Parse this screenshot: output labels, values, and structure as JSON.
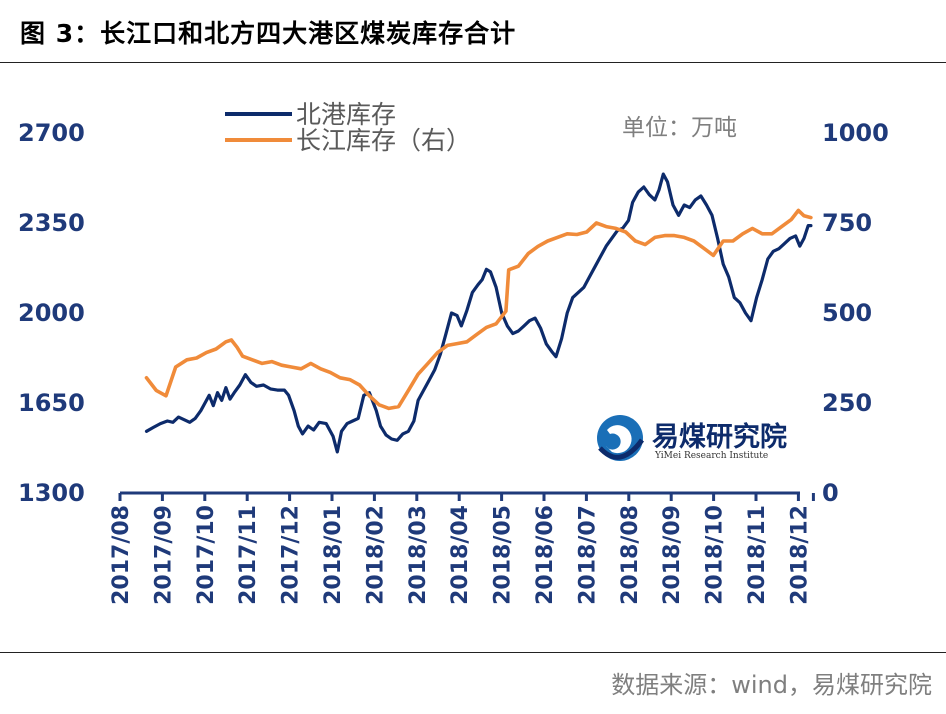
{
  "header": {
    "title": "图 3：长江口和北方四大港区煤炭库存合计"
  },
  "footer": {
    "source": "数据来源：wind，易煤研究院"
  },
  "logo": {
    "name": "易煤研究院",
    "subtitle": "YiMei Research Institute"
  },
  "colors": {
    "north": "#0d2b6b",
    "yangtze": "#f08b3a",
    "axis": "#1f3a7a",
    "text": "#1f3a7a",
    "unit": "#7f7f7f"
  },
  "chart_data": {
    "type": "line",
    "unit_label": "单位：万吨",
    "left_axis": {
      "ticks": [
        1300,
        1650,
        2000,
        2350,
        2700
      ],
      "ylim": [
        1300,
        2700
      ]
    },
    "right_axis": {
      "ticks": [
        0,
        250,
        500,
        750,
        1000
      ],
      "ylim": [
        0,
        1000
      ]
    },
    "x_ticks": [
      "2017/08",
      "2017/09",
      "2017/10",
      "2017/11",
      "2017/12",
      "2018/01",
      "2018/02",
      "2018/03",
      "2018/04",
      "2018/05",
      "2018/06",
      "2018/07",
      "2018/08",
      "2018/09",
      "2018/10",
      "2018/11",
      "2018/12"
    ],
    "legend": {
      "position": "top-left",
      "entries": [
        "北港库存",
        "长江库存（右）"
      ]
    },
    "series": [
      {
        "name": "北港库存",
        "axis": "left",
        "points": [
          [
            "2017-08-20",
            1540
          ],
          [
            "2017-08-25",
            1555
          ],
          [
            "2017-08-30",
            1570
          ],
          [
            "2017-09-04",
            1580
          ],
          [
            "2017-09-08",
            1575
          ],
          [
            "2017-09-12",
            1595
          ],
          [
            "2017-09-16",
            1585
          ],
          [
            "2017-09-20",
            1575
          ],
          [
            "2017-09-24",
            1590
          ],
          [
            "2017-09-28",
            1620
          ],
          [
            "2017-10-01",
            1650
          ],
          [
            "2017-10-04",
            1680
          ],
          [
            "2017-10-07",
            1640
          ],
          [
            "2017-10-10",
            1690
          ],
          [
            "2017-10-13",
            1660
          ],
          [
            "2017-10-16",
            1710
          ],
          [
            "2017-10-19",
            1665
          ],
          [
            "2017-10-22",
            1690
          ],
          [
            "2017-10-26",
            1720
          ],
          [
            "2017-10-30",
            1760
          ],
          [
            "2017-11-03",
            1730
          ],
          [
            "2017-11-07",
            1715
          ],
          [
            "2017-11-12",
            1720
          ],
          [
            "2017-11-17",
            1705
          ],
          [
            "2017-11-22",
            1700
          ],
          [
            "2017-11-27",
            1700
          ],
          [
            "2017-11-30",
            1680
          ],
          [
            "2017-12-04",
            1620
          ],
          [
            "2017-12-07",
            1560
          ],
          [
            "2017-12-10",
            1530
          ],
          [
            "2017-12-14",
            1560
          ],
          [
            "2017-12-18",
            1545
          ],
          [
            "2017-12-22",
            1575
          ],
          [
            "2017-12-27",
            1570
          ],
          [
            "2018-01-01",
            1520
          ],
          [
            "2018-01-04",
            1460
          ],
          [
            "2018-01-07",
            1540
          ],
          [
            "2018-01-11",
            1570
          ],
          [
            "2018-01-15",
            1580
          ],
          [
            "2018-01-19",
            1590
          ],
          [
            "2018-01-23",
            1680
          ],
          [
            "2018-01-27",
            1690
          ],
          [
            "2018-02-01",
            1620
          ],
          [
            "2018-02-04",
            1560
          ],
          [
            "2018-02-08",
            1525
          ],
          [
            "2018-02-12",
            1510
          ],
          [
            "2018-02-16",
            1505
          ],
          [
            "2018-02-20",
            1530
          ],
          [
            "2018-02-24",
            1540
          ],
          [
            "2018-02-28",
            1580
          ],
          [
            "2018-03-03",
            1660
          ],
          [
            "2018-03-07",
            1700
          ],
          [
            "2018-03-11",
            1740
          ],
          [
            "2018-03-15",
            1780
          ],
          [
            "2018-03-19",
            1840
          ],
          [
            "2018-03-23",
            1920
          ],
          [
            "2018-03-27",
            2000
          ],
          [
            "2018-03-31",
            1990
          ],
          [
            "2018-04-03",
            1950
          ],
          [
            "2018-04-07",
            2010
          ],
          [
            "2018-04-11",
            2080
          ],
          [
            "2018-04-15",
            2110
          ],
          [
            "2018-04-18",
            2130
          ],
          [
            "2018-04-21",
            2170
          ],
          [
            "2018-04-24",
            2160
          ],
          [
            "2018-04-28",
            2100
          ],
          [
            "2018-05-02",
            2000
          ],
          [
            "2018-05-06",
            1950
          ],
          [
            "2018-05-10",
            1920
          ],
          [
            "2018-05-14",
            1930
          ],
          [
            "2018-05-18",
            1950
          ],
          [
            "2018-05-22",
            1970
          ],
          [
            "2018-05-26",
            1980
          ],
          [
            "2018-05-30",
            1940
          ],
          [
            "2018-06-03",
            1880
          ],
          [
            "2018-06-07",
            1850
          ],
          [
            "2018-06-10",
            1830
          ],
          [
            "2018-06-14",
            1900
          ],
          [
            "2018-06-18",
            2000
          ],
          [
            "2018-06-22",
            2060
          ],
          [
            "2018-06-26",
            2080
          ],
          [
            "2018-06-30",
            2100
          ],
          [
            "2018-07-04",
            2140
          ],
          [
            "2018-07-08",
            2180
          ],
          [
            "2018-07-12",
            2220
          ],
          [
            "2018-07-16",
            2260
          ],
          [
            "2018-07-20",
            2290
          ],
          [
            "2018-07-24",
            2320
          ],
          [
            "2018-07-28",
            2330
          ],
          [
            "2018-08-01",
            2360
          ],
          [
            "2018-08-04",
            2430
          ],
          [
            "2018-08-08",
            2470
          ],
          [
            "2018-08-12",
            2490
          ],
          [
            "2018-08-16",
            2460
          ],
          [
            "2018-08-20",
            2440
          ],
          [
            "2018-08-23",
            2480
          ],
          [
            "2018-08-26",
            2540
          ],
          [
            "2018-08-29",
            2510
          ],
          [
            "2018-09-02",
            2420
          ],
          [
            "2018-09-06",
            2380
          ],
          [
            "2018-09-10",
            2420
          ],
          [
            "2018-09-14",
            2410
          ],
          [
            "2018-09-18",
            2440
          ],
          [
            "2018-09-22",
            2455
          ],
          [
            "2018-09-26",
            2420
          ],
          [
            "2018-09-30",
            2380
          ],
          [
            "2018-10-04",
            2290
          ],
          [
            "2018-10-08",
            2190
          ],
          [
            "2018-10-12",
            2140
          ],
          [
            "2018-10-16",
            2060
          ],
          [
            "2018-10-20",
            2040
          ],
          [
            "2018-10-24",
            2000
          ],
          [
            "2018-10-28",
            1970
          ],
          [
            "2018-11-01",
            2060
          ],
          [
            "2018-11-05",
            2130
          ],
          [
            "2018-11-09",
            2210
          ],
          [
            "2018-11-13",
            2240
          ],
          [
            "2018-11-17",
            2250
          ],
          [
            "2018-11-21",
            2270
          ],
          [
            "2018-11-25",
            2290
          ],
          [
            "2018-11-29",
            2300
          ],
          [
            "2018-12-02",
            2260
          ],
          [
            "2018-12-05",
            2290
          ],
          [
            "2018-12-08",
            2340
          ],
          [
            "2018-12-10",
            2340
          ]
        ]
      },
      {
        "name": "长江库存（右）",
        "axis": "right",
        "points": [
          [
            "2017-08-20",
            320
          ],
          [
            "2017-08-27",
            285
          ],
          [
            "2017-09-03",
            270
          ],
          [
            "2017-09-10",
            350
          ],
          [
            "2017-09-18",
            370
          ],
          [
            "2017-09-25",
            375
          ],
          [
            "2017-10-02",
            390
          ],
          [
            "2017-10-09",
            400
          ],
          [
            "2017-10-16",
            420
          ],
          [
            "2017-10-20",
            425
          ],
          [
            "2017-10-24",
            405
          ],
          [
            "2017-10-28",
            380
          ],
          [
            "2017-11-04",
            370
          ],
          [
            "2017-11-11",
            360
          ],
          [
            "2017-11-18",
            365
          ],
          [
            "2017-11-25",
            355
          ],
          [
            "2017-12-02",
            350
          ],
          [
            "2017-12-09",
            345
          ],
          [
            "2017-12-16",
            360
          ],
          [
            "2017-12-23",
            345
          ],
          [
            "2017-12-30",
            335
          ],
          [
            "2018-01-06",
            320
          ],
          [
            "2018-01-13",
            315
          ],
          [
            "2018-01-20",
            300
          ],
          [
            "2018-01-27",
            270
          ],
          [
            "2018-02-03",
            245
          ],
          [
            "2018-02-10",
            235
          ],
          [
            "2018-02-17",
            240
          ],
          [
            "2018-02-24",
            285
          ],
          [
            "2018-03-03",
            330
          ],
          [
            "2018-03-10",
            360
          ],
          [
            "2018-03-17",
            390
          ],
          [
            "2018-03-24",
            410
          ],
          [
            "2018-03-31",
            415
          ],
          [
            "2018-04-07",
            420
          ],
          [
            "2018-04-14",
            440
          ],
          [
            "2018-04-21",
            460
          ],
          [
            "2018-04-28",
            470
          ],
          [
            "2018-05-05",
            505
          ],
          [
            "2018-05-07",
            620
          ],
          [
            "2018-05-14",
            630
          ],
          [
            "2018-05-21",
            665
          ],
          [
            "2018-05-28",
            685
          ],
          [
            "2018-06-04",
            700
          ],
          [
            "2018-06-11",
            710
          ],
          [
            "2018-06-18",
            720
          ],
          [
            "2018-06-25",
            718
          ],
          [
            "2018-07-02",
            725
          ],
          [
            "2018-07-09",
            750
          ],
          [
            "2018-07-16",
            740
          ],
          [
            "2018-07-23",
            735
          ],
          [
            "2018-07-30",
            725
          ],
          [
            "2018-08-06",
            700
          ],
          [
            "2018-08-13",
            690
          ],
          [
            "2018-08-20",
            710
          ],
          [
            "2018-08-27",
            715
          ],
          [
            "2018-09-03",
            715
          ],
          [
            "2018-09-10",
            710
          ],
          [
            "2018-09-17",
            700
          ],
          [
            "2018-09-24",
            680
          ],
          [
            "2018-10-01",
            660
          ],
          [
            "2018-10-08",
            700
          ],
          [
            "2018-10-15",
            700
          ],
          [
            "2018-10-22",
            720
          ],
          [
            "2018-10-29",
            735
          ],
          [
            "2018-11-05",
            720
          ],
          [
            "2018-11-12",
            720
          ],
          [
            "2018-11-19",
            740
          ],
          [
            "2018-11-26",
            760
          ],
          [
            "2018-12-01",
            785
          ],
          [
            "2018-12-05",
            770
          ],
          [
            "2018-12-10",
            765
          ]
        ]
      }
    ]
  }
}
